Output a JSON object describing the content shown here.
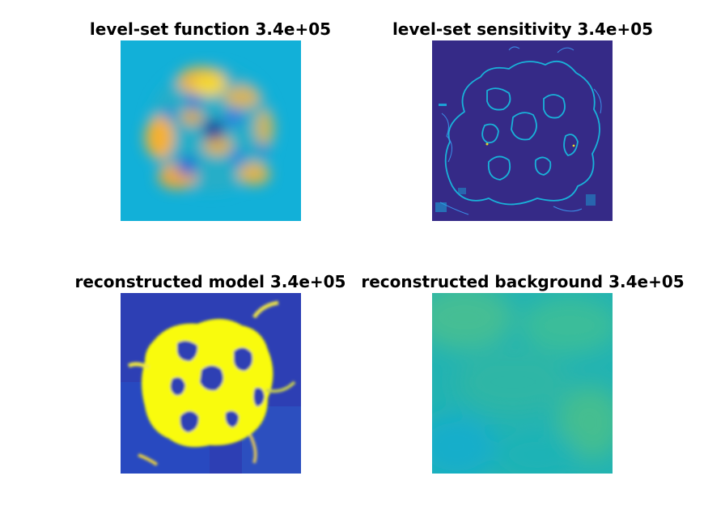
{
  "panels": {
    "top_left": {
      "title": "level-set function 3.4e+05"
    },
    "top_right": {
      "title": "level-set sensitivity 3.4e+05"
    },
    "bottom_left": {
      "title": "reconstructed model 3.4e+05"
    },
    "bottom_right": {
      "title": "reconstructed background 3.4e+05"
    }
  },
  "colormap": {
    "name": "parula",
    "dark_blue": "#352A87",
    "blue": "#1F5BD8",
    "cyan": "#12B4D6",
    "teal": "#3CBF9C",
    "yellow": "#F9FB0E",
    "orange": "#F5B030"
  }
}
